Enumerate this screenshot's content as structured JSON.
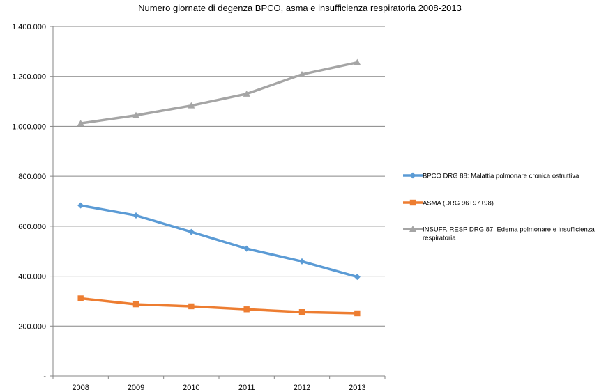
{
  "chart_data": {
    "type": "line",
    "title": "Numero giornate di degenza BPCO, asma e insufficienza respiratoria 2008-2013",
    "xlabel": "",
    "ylabel": "",
    "categories": [
      "2008",
      "2009",
      "2010",
      "2011",
      "2012",
      "2013"
    ],
    "ylim": [
      0,
      1400000
    ],
    "yticks": [
      0,
      200000,
      400000,
      600000,
      800000,
      1000000,
      1200000,
      1400000
    ],
    "ytick_labels": [
      "-",
      "200.000",
      "400.000",
      "600.000",
      "800.000",
      "1.000.000",
      "1.200.000",
      "1.400.000"
    ],
    "grid": true,
    "legend_position": "right",
    "series": [
      {
        "name": "BPCO DRG 88: Malattia polmonare cronica ostruttiva",
        "label_lines": [
          "BPCO DRG 88: Malattia polmonare cronica ostruttiva"
        ],
        "values": [
          683000,
          643000,
          577000,
          510000,
          459000,
          397000
        ],
        "color": "#5b9bd5",
        "marker": "diamond"
      },
      {
        "name": "ASMA (DRG 96+97+98)",
        "label_lines": [
          "ASMA (DRG 96+97+98)"
        ],
        "values": [
          311000,
          287000,
          279000,
          267000,
          256000,
          251000
        ],
        "color": "#ed7d31",
        "marker": "square"
      },
      {
        "name": "INSUFF. RESP DRG 87: Edema polmonare e insufficienza respiratoria",
        "label_lines": [
          "INSUFF. RESP DRG 87: Edema polmonare e insufficienza",
          "respiratoria"
        ],
        "values": [
          1012000,
          1044000,
          1083000,
          1130000,
          1208000,
          1256000
        ],
        "color": "#a5a5a5",
        "marker": "triangle"
      }
    ]
  }
}
